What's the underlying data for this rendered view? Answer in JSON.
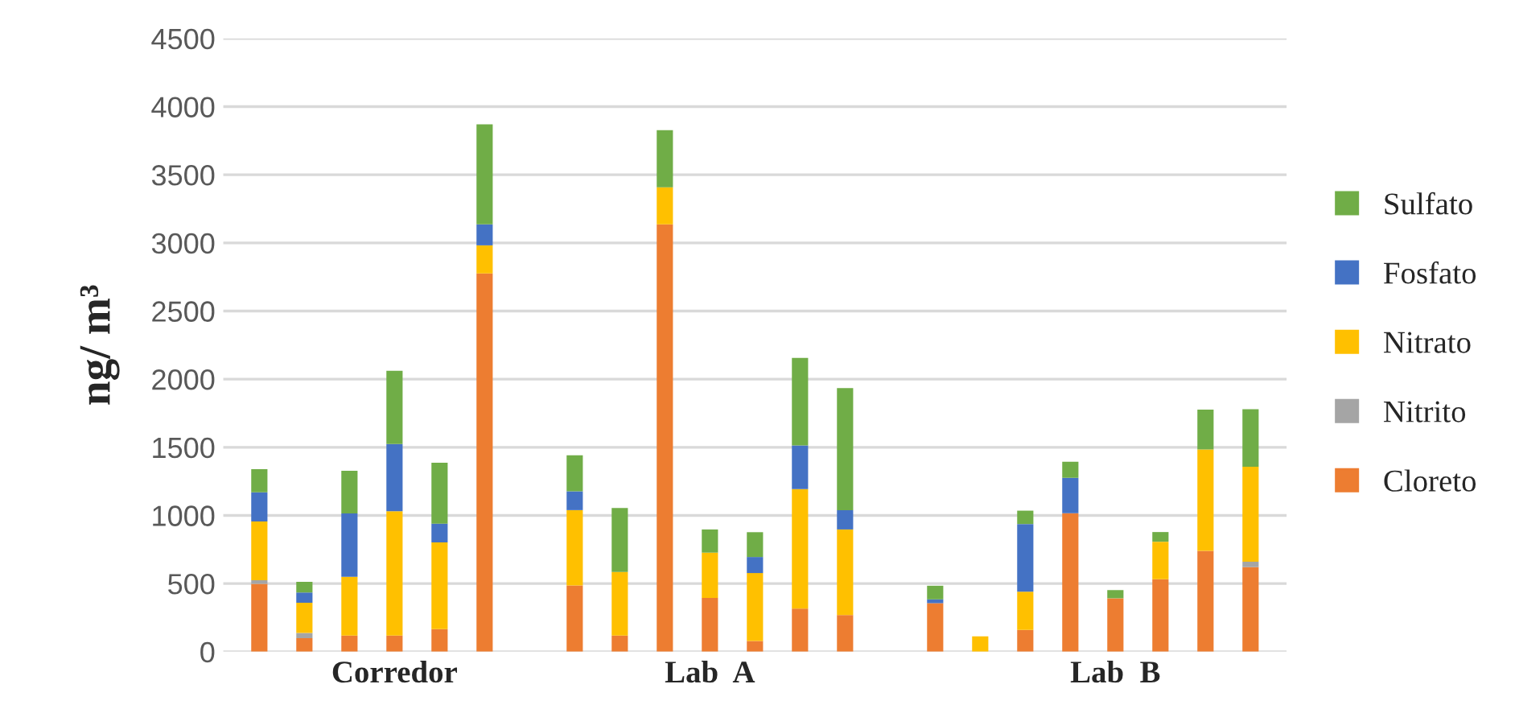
{
  "chart_data": {
    "type": "bar",
    "stacked": true,
    "ylabel": "ng/ m³",
    "categories": [
      null,
      null,
      null,
      "Corredor",
      null,
      null,
      null,
      null,
      null,
      null,
      "Lab  A",
      null,
      null,
      null,
      null,
      null,
      null,
      null,
      null,
      "Lab  B",
      null,
      null,
      null
    ],
    "series": [
      {
        "name": "Cloreto",
        "color": "#ed7d31",
        "values": [
          498,
          99,
          118,
          118,
          166,
          2776,
          null,
          486,
          118,
          3136,
          395,
          79,
          316,
          269,
          null,
          356,
          0,
          160,
          1016,
          392,
          532,
          740,
          620
        ]
      },
      {
        "name": "Nitrito",
        "color": "#a5a5a5",
        "values": [
          27,
          39,
          0,
          0,
          0,
          0,
          null,
          0,
          0,
          0,
          0,
          0,
          0,
          0,
          null,
          0,
          0,
          0,
          0,
          0,
          0,
          0,
          40
        ]
      },
      {
        "name": "Nitrato",
        "color": "#ffc000",
        "values": [
          431,
          221,
          431,
          913,
          636,
          206,
          null,
          553,
          467,
          272,
          332,
          498,
          877,
          628,
          null,
          0,
          112,
          280,
          0,
          0,
          275,
          744,
          697
        ]
      },
      {
        "name": "Fosfato",
        "color": "#4472c4",
        "values": [
          213,
          75,
          466,
          493,
          138,
          154,
          null,
          138,
          0,
          0,
          0,
          118,
          320,
          142,
          null,
          28,
          0,
          497,
          260,
          0,
          0,
          0,
          0
        ]
      },
      {
        "name": "Sulfato",
        "color": "#70ad47",
        "values": [
          170,
          79,
          312,
          538,
          446,
          734,
          null,
          265,
          470,
          419,
          170,
          182,
          643,
          896,
          null,
          100,
          0,
          98,
          118,
          60,
          71,
          292,
          422
        ]
      }
    ],
    "ylim": [
      0,
      4500
    ],
    "yticks": [
      0,
      500,
      1000,
      1500,
      2000,
      2500,
      3000,
      3500,
      4000,
      4500
    ],
    "grid": "y",
    "legend": "right"
  }
}
